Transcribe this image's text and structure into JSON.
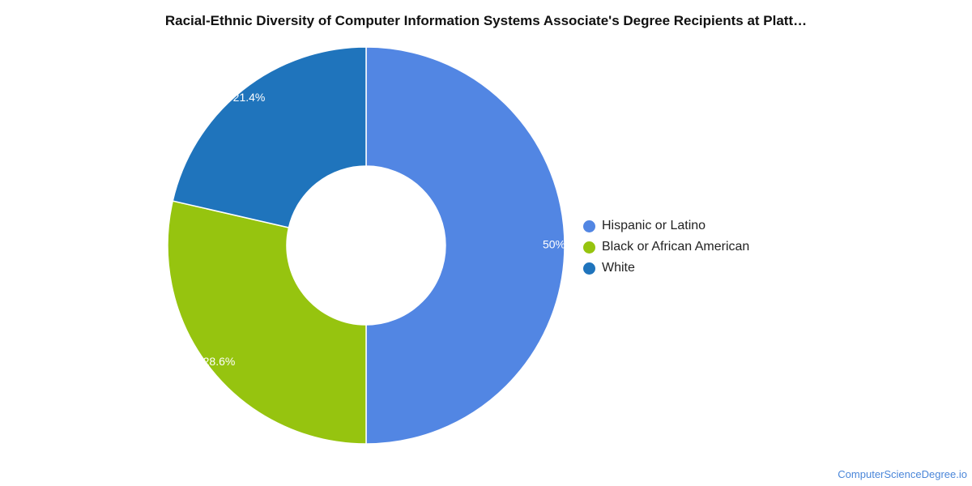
{
  "chart_data": {
    "type": "pie",
    "title": "Racial-Ethnic Diversity of Computer Information Systems Associate's Degree Recipients at Platt…",
    "donut": true,
    "legend_position": "right",
    "start_angle": "top, clockwise",
    "slices": [
      {
        "label": "Hispanic or Latino",
        "value": 50,
        "display": "50%",
        "color": "#5286e3"
      },
      {
        "label": "Black or African American",
        "value": 28.6,
        "display": "28.6%",
        "color": "#96c40f"
      },
      {
        "label": "White",
        "value": 21.4,
        "display": "21.4%",
        "color": "#1f74bc"
      }
    ]
  },
  "footer": {
    "source": "ComputerScienceDegree.io"
  }
}
